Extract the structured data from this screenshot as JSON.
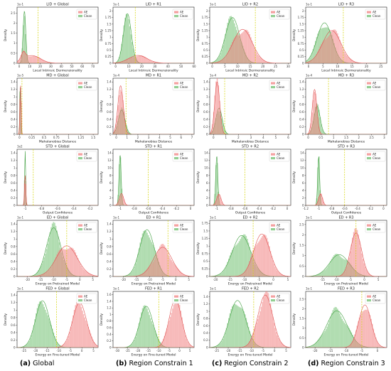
{
  "figure": {
    "column_labels": [
      {
        "tag": "(a)",
        "text": "Global"
      },
      {
        "tag": "(b)",
        "text": "Region Constrain 1"
      },
      {
        "tag": "(c)",
        "text": "Region Constrain 2"
      },
      {
        "tag": "(d)",
        "text": "Region Constrain 3"
      }
    ]
  },
  "colors": {
    "ae": "#f08080",
    "clean": "#6fbf6f",
    "ae_line": "#e05050",
    "clean_line": "#3f9f3f",
    "threshold": "#d4d400"
  },
  "chart_data": [
    {
      "type": "area",
      "title": "LID + Global",
      "xlabel": "Local Intrinsic Dermensionality",
      "ylabel": "Density",
      "exponent": "1e-1",
      "xticks": [
        0,
        10,
        20,
        30,
        40,
        50,
        60,
        70
      ],
      "yticks": [
        0,
        0.5,
        1,
        1.5,
        2,
        2.5
      ],
      "xlim": [
        -2,
        75
      ],
      "ylim": [
        0,
        2.8
      ],
      "threshold": 18,
      "legend": [
        "AE",
        "Clean"
      ],
      "series": [
        {
          "name": "AE",
          "peaks": [
            [
              12,
              0.55,
              8,
              0.7
            ],
            [
              4,
              0.35,
              2,
              1
            ]
          ]
        },
        {
          "name": "Clean",
          "peaks": [
            [
              5,
              2.6,
              1.3,
              1
            ]
          ]
        }
      ]
    },
    {
      "type": "area",
      "title": "LID + R1",
      "xlabel": "Local Intrinsic Dermensionality",
      "ylabel": "Density",
      "exponent": "1e-1",
      "xticks": [
        0,
        10,
        20,
        30,
        40,
        50,
        60
      ],
      "yticks": [
        0,
        0.25,
        0.5,
        0.75,
        1,
        1.25,
        1.5,
        1.75,
        2
      ],
      "xlim": [
        -2,
        60
      ],
      "ylim": [
        0,
        2.15
      ],
      "threshold": 15,
      "legend": [
        "AE",
        "Clean"
      ],
      "series": [
        {
          "name": "AE",
          "peaks": [
            [
              17,
              0.5,
              7,
              0.6
            ]
          ]
        },
        {
          "name": "Clean",
          "peaks": [
            [
              9,
              1.9,
              3,
              1
            ]
          ]
        }
      ]
    },
    {
      "type": "area",
      "title": "LID + R2",
      "xlabel": "Local Intrinsic Dermensionality",
      "ylabel": "Density",
      "exponent": "1e-1",
      "xticks": [
        0,
        5,
        10,
        15,
        20,
        25,
        30
      ],
      "yticks": [
        0,
        0.25,
        0.5,
        0.75,
        1,
        1.25,
        1.5,
        1.75,
        2
      ],
      "xlim": [
        -1,
        31
      ],
      "ylim": [
        0,
        2.15
      ],
      "threshold": 17,
      "legend": [
        "AE",
        "Clean"
      ],
      "series": [
        {
          "name": "AE",
          "peaks": [
            [
              12,
              1.3,
              3.8,
              1
            ]
          ]
        },
        {
          "name": "Clean",
          "peaks": [
            [
              8,
              1.75,
              2.8,
              1
            ]
          ]
        }
      ]
    },
    {
      "type": "area",
      "title": "LID + R3",
      "xlabel": "Local Intrinsic Dermensionality",
      "ylabel": "Density",
      "exponent": "1e-1",
      "xticks": [
        0,
        5,
        10,
        15,
        20,
        25
      ],
      "yticks": [
        0,
        0.25,
        0.5,
        0.75,
        1,
        1.25,
        1.5,
        1.75,
        2
      ],
      "xlim": [
        -1,
        27
      ],
      "ylim": [
        0,
        2.15
      ],
      "threshold": 12,
      "legend": [
        "AE",
        "Clean"
      ],
      "series": [
        {
          "name": "AE",
          "peaks": [
            [
              8,
              1.25,
              3.2,
              1
            ]
          ]
        },
        {
          "name": "Clean",
          "peaks": [
            [
              5.5,
              1.55,
              2.6,
              1
            ]
          ]
        }
      ]
    },
    {
      "type": "area",
      "title": "MD + Global",
      "xlabel": "Mahalanobias Distance",
      "ylabel": "Density",
      "exponent": "1e-5",
      "xticks": [
        0,
        0.25,
        0.5,
        0.75,
        1,
        1.25,
        1.5
      ],
      "yticks": [
        0,
        0.2,
        0.4,
        0.6,
        0.8,
        1,
        1.2,
        1.4
      ],
      "xlim": [
        -0.05,
        1.6
      ],
      "ylim": [
        0,
        1.5
      ],
      "threshold": 0.05,
      "legend": [
        "AE",
        "Clean"
      ],
      "series": [
        {
          "name": "AE",
          "peaks": [
            [
              0.02,
              1.35,
              0.012,
              1
            ]
          ]
        },
        {
          "name": "Clean",
          "peaks": [
            [
              0.015,
              1.25,
              0.01,
              1
            ]
          ]
        }
      ]
    },
    {
      "type": "area",
      "title": "MD + R1",
      "xlabel": "Mahalanobias Distance",
      "ylabel": "Density",
      "exponent": "1e-4",
      "xticks": [
        0,
        1,
        2,
        3,
        4,
        5,
        6,
        7
      ],
      "yticks": [
        0,
        0.2,
        0.4,
        0.6,
        0.8,
        1,
        1.2,
        1.4
      ],
      "xlim": [
        -0.3,
        7.2
      ],
      "ylim": [
        0,
        1.5
      ],
      "threshold": 0.9,
      "legend": [
        "AE",
        "Clean"
      ],
      "series": [
        {
          "name": "AE",
          "peaks": [
            [
              0.4,
              1.3,
              0.25,
              1
            ]
          ]
        },
        {
          "name": "Clean",
          "peaks": [
            [
              0.5,
              0.65,
              0.3,
              1
            ]
          ]
        }
      ]
    },
    {
      "type": "area",
      "title": "MD + R2",
      "xlabel": "Mahalanobias Distance",
      "ylabel": "Density",
      "exponent": "1e-4",
      "xticks": [
        0,
        1,
        2,
        3,
        4,
        5,
        6
      ],
      "yticks": [
        0,
        0.2,
        0.4,
        0.6,
        0.8,
        1,
        1.2,
        1.4
      ],
      "xlim": [
        -0.3,
        6.2
      ],
      "ylim": [
        0,
        1.5
      ],
      "threshold": 0.9,
      "legend": [
        "AE",
        "Clean"
      ],
      "series": [
        {
          "name": "AE",
          "peaks": [
            [
              0.3,
              1.4,
              0.2,
              1
            ]
          ]
        },
        {
          "name": "Clean",
          "peaks": [
            [
              0.45,
              0.7,
              0.25,
              1
            ]
          ]
        }
      ]
    },
    {
      "type": "area",
      "title": "MD + R3",
      "xlabel": "Mahalanobias Distance",
      "ylabel": "Density",
      "exponent": "1e-4",
      "xticks": [
        0,
        0.5,
        1,
        1.5,
        2,
        2.5,
        3
      ],
      "yticks": [
        0,
        0.2,
        0.4,
        0.6,
        0.8,
        1,
        1.2,
        1.4
      ],
      "xlim": [
        -0.1,
        3.1
      ],
      "ylim": [
        0,
        1.5
      ],
      "threshold": 0.8,
      "legend": [
        "AE",
        "Clean"
      ],
      "series": [
        {
          "name": "AE",
          "peaks": [
            [
              0.25,
              1.2,
              0.09,
              1
            ]
          ]
        },
        {
          "name": "Clean",
          "peaks": [
            [
              0.35,
              0.75,
              0.12,
              1
            ]
          ]
        }
      ]
    },
    {
      "type": "area",
      "title": "STD + Global",
      "xlabel": "Output Confidence",
      "ylabel": "Density",
      "exponent": "1e2",
      "xticks": [
        -1,
        -0.8,
        -0.6,
        -0.4,
        -0.2
      ],
      "yticks": [
        0,
        0.2,
        0.4,
        0.6,
        0.8,
        1,
        1.2,
        1.4
      ],
      "xlim": [
        -1.1,
        -0.1
      ],
      "ylim": [
        0,
        1.5
      ],
      "threshold": -0.9,
      "legend": [
        "AE",
        "Clean"
      ],
      "series": [
        {
          "name": "AE",
          "peaks": [
            [
              -1,
              0.8,
              0.008,
              1
            ]
          ]
        },
        {
          "name": "Clean",
          "peaks": [
            [
              -1,
              1.45,
              0.006,
              1
            ]
          ]
        }
      ]
    },
    {
      "type": "area",
      "title": "STD + R1",
      "xlabel": "Output Confidence",
      "ylabel": "Density",
      "exponent": "",
      "xticks": [
        -1,
        -0.8,
        -0.6,
        -0.4,
        -0.2,
        0
      ],
      "yticks": [
        0,
        2,
        4,
        6,
        8,
        10,
        12,
        14
      ],
      "xlim": [
        -1.1,
        0.05
      ],
      "ylim": [
        0,
        15
      ],
      "threshold": -0.6,
      "legend": [
        "AE",
        "Clean"
      ],
      "series": [
        {
          "name": "AE",
          "peaks": [
            [
              -0.98,
              3.2,
              0.03,
              1
            ]
          ]
        },
        {
          "name": "Clean",
          "peaks": [
            [
              -1,
              13.5,
              0.015,
              1
            ]
          ]
        }
      ]
    },
    {
      "type": "area",
      "title": "STD + R2",
      "xlabel": "Output Confidence",
      "ylabel": "Density",
      "exponent": "",
      "xticks": [
        -1,
        -0.8,
        -0.6,
        -0.4,
        -0.2,
        0
      ],
      "yticks": [
        0,
        2,
        4,
        6,
        8,
        10,
        12,
        14
      ],
      "xlim": [
        -1.1,
        0.05
      ],
      "ylim": [
        0,
        15
      ],
      "threshold": -0.6,
      "legend": [
        "AE",
        "Clean"
      ],
      "series": [
        {
          "name": "AE",
          "peaks": [
            [
              -0.97,
              3,
              0.03,
              1
            ]
          ]
        },
        {
          "name": "Clean",
          "peaks": [
            [
              -1,
              13.2,
              0.015,
              1
            ]
          ]
        }
      ]
    },
    {
      "type": "area",
      "title": "STD + R3",
      "xlabel": "Output Confidence",
      "ylabel": "Density",
      "exponent": "",
      "xticks": [
        -1.2,
        -1,
        -0.8,
        -0.6,
        -0.4,
        -0.2,
        0
      ],
      "yticks": [
        0,
        2,
        4,
        6,
        8,
        10,
        12,
        14
      ],
      "xlim": [
        -1.2,
        0.05
      ],
      "ylim": [
        0,
        15
      ],
      "threshold": -0.6,
      "legend": [
        "AE",
        "Clean"
      ],
      "series": [
        {
          "name": "AE",
          "peaks": [
            [
              -0.97,
              3,
              0.03,
              1
            ]
          ]
        },
        {
          "name": "Clean",
          "peaks": [
            [
              -1,
              13,
              0.015,
              1
            ]
          ]
        }
      ]
    },
    {
      "type": "area",
      "title": "ED + Global",
      "xlabel": "Energy on Pretrained Model",
      "ylabel": "Density",
      "exponent": "1e-1",
      "xticks": [
        -20,
        -15,
        -10,
        -5,
        0,
        5
      ],
      "yticks": [
        0,
        0.2,
        0.4,
        0.6,
        0.8,
        1,
        1.2,
        1.4
      ],
      "xlim": [
        -24,
        7
      ],
      "ylim": [
        0,
        1.5
      ],
      "threshold": -5,
      "legend": [
        "AE",
        "Clean"
      ],
      "series": [
        {
          "name": "AE",
          "peaks": [
            [
              -5,
              0.82,
              4,
              1
            ]
          ]
        },
        {
          "name": "Clean",
          "peaks": [
            [
              -10,
              1.3,
              2.8,
              1
            ]
          ]
        }
      ]
    },
    {
      "type": "area",
      "title": "ED + R1",
      "xlabel": "Energy on Pretrained Model",
      "ylabel": "Density",
      "exponent": "1e-1",
      "xticks": [
        -20,
        -15,
        -10,
        -5,
        0,
        5
      ],
      "yticks": [
        0,
        0.2,
        0.4,
        0.6,
        0.8,
        1,
        1.2,
        1.4
      ],
      "xlim": [
        -24,
        7
      ],
      "ylim": [
        0,
        1.5
      ],
      "threshold": -3,
      "legend": [
        "AE",
        "Clean"
      ],
      "series": [
        {
          "name": "AE",
          "peaks": [
            [
              -5,
              0.78,
              3.5,
              1
            ]
          ]
        },
        {
          "name": "Clean",
          "peaks": [
            [
              -11,
              1.25,
              2.8,
              1
            ]
          ]
        }
      ]
    },
    {
      "type": "area",
      "title": "ED + R2",
      "xlabel": "Energy on Pretrained Model",
      "ylabel": "Density",
      "exponent": "1e-1",
      "xticks": [
        -20,
        -15,
        -10,
        -5,
        0,
        5
      ],
      "yticks": [
        0,
        0.25,
        0.5,
        0.75,
        1,
        1.25,
        1.5,
        1.75
      ],
      "xlim": [
        -22,
        6
      ],
      "ylim": [
        0,
        1.85
      ],
      "threshold": -7,
      "legend": [
        "AE",
        "Clean"
      ],
      "series": [
        {
          "name": "AE",
          "peaks": [
            [
              -4,
              1.4,
              2.8,
              1
            ]
          ]
        },
        {
          "name": "Clean",
          "peaks": [
            [
              -11,
              1.35,
              3.2,
              1
            ]
          ]
        }
      ]
    },
    {
      "type": "area",
      "title": "ED + R3",
      "xlabel": "Energy on Pretrained Model",
      "ylabel": "Density",
      "exponent": "1e-1",
      "xticks": [
        -15,
        -10,
        -5,
        0,
        5
      ],
      "yticks": [
        0,
        0.5,
        1,
        1.5,
        2,
        2.5
      ],
      "xlim": [
        -21,
        8
      ],
      "ylim": [
        0,
        2.7
      ],
      "threshold": -3,
      "legend": [
        "AE",
        "Clean"
      ],
      "series": [
        {
          "name": "AE",
          "peaks": [
            [
              -3,
              2.1,
              2,
              1
            ]
          ]
        },
        {
          "name": "Clean",
          "peaks": [
            [
              -9,
              1.05,
              3.5,
              1
            ]
          ]
        }
      ]
    },
    {
      "type": "area",
      "title": "FED + Global",
      "xlabel": "Energy on Fine-tuned Model",
      "ylabel": "Density",
      "exponent": "1e-1",
      "xticks": [
        -25,
        -20,
        -15,
        -10,
        -5,
        0,
        5
      ],
      "yticks": [
        0,
        0.2,
        0.4,
        0.6,
        0.8,
        1,
        1.2,
        1.4
      ],
      "xlim": [
        -28,
        7
      ],
      "ylim": [
        0,
        1.5
      ],
      "threshold": -11,
      "legend": [
        "AE",
        "Clean"
      ],
      "series": [
        {
          "name": "AE",
          "peaks": [
            [
              -1,
              1.2,
              3,
              1
            ]
          ]
        },
        {
          "name": "Clean",
          "peaks": [
            [
              -17,
              1.25,
              3,
              1
            ]
          ]
        }
      ]
    },
    {
      "type": "area",
      "title": "FED + R1",
      "xlabel": "Energy on Fine-tuned Model",
      "ylabel": "Density",
      "exponent": "1e-1",
      "xticks": [
        -30,
        -25,
        -20,
        -15,
        -10,
        -5,
        0,
        5
      ],
      "yticks": [
        0,
        0.2,
        0.4,
        0.6,
        0.8,
        1,
        1.2,
        1.4,
        1.6
      ],
      "xlim": [
        -32,
        7
      ],
      "ylim": [
        0,
        1.7
      ],
      "threshold": -10,
      "legend": [
        "AE",
        "Clean"
      ],
      "series": [
        {
          "name": "AE",
          "peaks": [
            [
              -2,
              1.45,
              3,
              1
            ]
          ]
        },
        {
          "name": "Clean",
          "peaks": [
            [
              -16,
              1.25,
              3.2,
              1
            ]
          ]
        }
      ]
    },
    {
      "type": "area",
      "title": "FED + R2",
      "xlabel": "Energy on Fine-tuned Model",
      "ylabel": "Density",
      "exponent": "1e-1",
      "xticks": [
        -25,
        -20,
        -15,
        -10,
        -5,
        0,
        5
      ],
      "yticks": [
        0,
        0.2,
        0.4,
        0.6,
        0.8,
        1,
        1.2,
        1.4
      ],
      "xlim": [
        -28,
        7
      ],
      "ylim": [
        0,
        1.55
      ],
      "threshold": -9,
      "legend": [
        "AE",
        "Clean"
      ],
      "series": [
        {
          "name": "AE",
          "peaks": [
            [
              -4,
              1.45,
              3.2,
              1
            ]
          ]
        },
        {
          "name": "Clean",
          "peaks": [
            [
              -16,
              1.3,
              3.5,
              1
            ]
          ]
        }
      ]
    },
    {
      "type": "area",
      "title": "FED + R3",
      "xlabel": "Energy on Fine-tuned Model",
      "ylabel": "Density",
      "exponent": "1e-1",
      "xticks": [
        -20,
        -15,
        -10,
        -5,
        0
      ],
      "yticks": [
        0,
        0.5,
        1,
        1.5,
        2,
        2.5
      ],
      "xlim": [
        -23,
        3
      ],
      "ylim": [
        0,
        2.9
      ],
      "threshold": -5,
      "legend": [
        "AE",
        "Clean"
      ],
      "series": [
        {
          "name": "AE",
          "peaks": [
            [
              -4,
              2.2,
              2,
              1
            ]
          ]
        },
        {
          "name": "Clean",
          "peaks": [
            [
              -13,
              1.9,
              3.3,
              1
            ]
          ]
        }
      ]
    }
  ]
}
